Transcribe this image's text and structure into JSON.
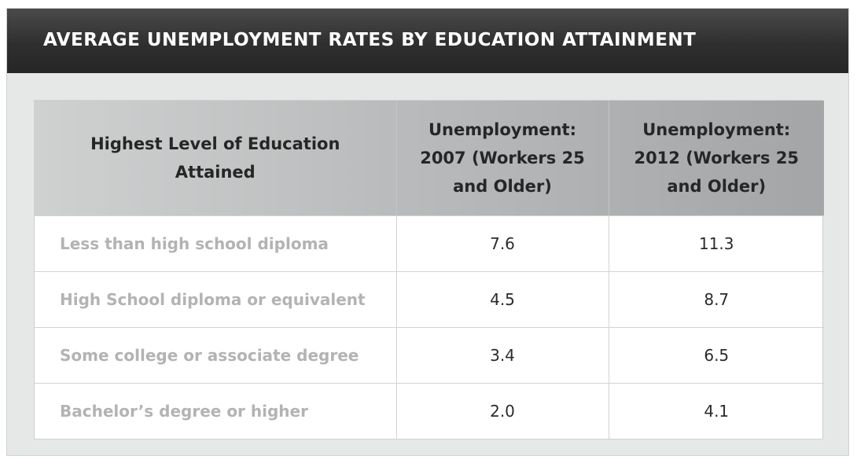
{
  "title": "AVERAGE UNEMPLOYMENT RATES BY EDUCATION ATTAINMENT",
  "chart_data": {
    "type": "table",
    "title": "AVERAGE UNEMPLOYMENT RATES BY EDUCATION ATTAINMENT",
    "columns": [
      "Highest Level of Education Attained",
      "Unemployment: 2007 (Workers 25 and Older)",
      "Unemployment: 2012 (Workers 25 and Older)"
    ],
    "rows": [
      {
        "label": "Less than high school diploma",
        "v2007": "7.6",
        "v2012": "11.3"
      },
      {
        "label": "High School diploma or equivalent",
        "v2007": "4.5",
        "v2012": "8.7"
      },
      {
        "label": "Some college or associate degree",
        "v2007": "3.4",
        "v2012": "6.5"
      },
      {
        "label": "Bachelor’s degree or higher",
        "v2007": "2.0",
        "v2012": "4.1"
      }
    ]
  },
  "colors": {
    "title_bar": "#2f2f2f",
    "header_bg": "#b9bbbc",
    "row_label": "#b3b3b3",
    "panel_bg": "#e6e8e8"
  }
}
